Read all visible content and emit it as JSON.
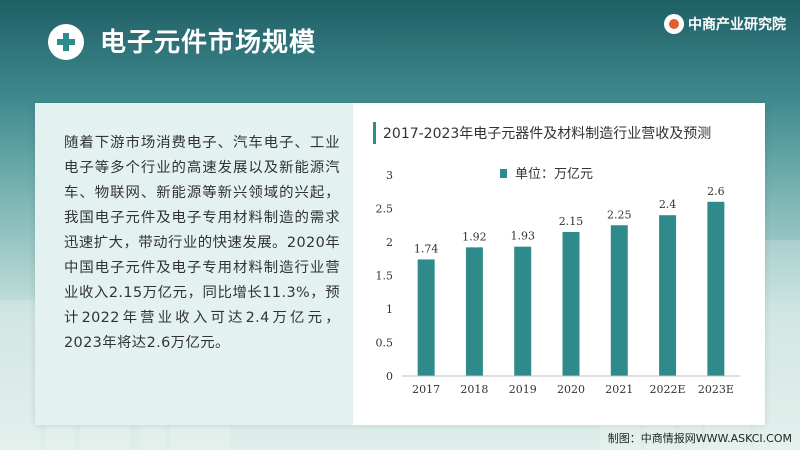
{
  "page": {
    "title": "电子元件市场规模",
    "logo_text": "中商产业研究院",
    "credit": "制图：中商情报网WWW.ASKCI.COM"
  },
  "text": {
    "paragraph": "随着下游市场消费电子、汽车电子、工业电子等多个行业的高速发展以及新能源汽车、物联网、新能源等新兴领域的兴起，我国电子元件及电子专用材料制造的需求迅速扩大，带动行业的快速发展。2020年中国电子元件及电子专用材料制造行业营业收入2.15万亿元，同比增长11.3%，预计2022年营业收入可达2.4万亿元，2023年将达2.6万亿元。"
  },
  "colors": {
    "bar": "#2f8b8b",
    "accent": "#2f8b8b",
    "text_panel": "#e3f2f1"
  },
  "chart_data": {
    "type": "bar",
    "title": "2017-2023年电子元器件及材料制造行业营收及预测",
    "categories": [
      "2017",
      "2018",
      "2019",
      "2020",
      "2021",
      "2022E",
      "2023E"
    ],
    "series": [
      {
        "name": "单位：万亿元",
        "values": [
          1.74,
          1.92,
          1.93,
          2.15,
          2.25,
          2.4,
          2.6
        ]
      }
    ],
    "data_labels": [
      "1.74",
      "1.92",
      "1.93",
      "2.15",
      "2.25",
      "2.4",
      "2.6"
    ],
    "yticks": [
      "0",
      "0.5",
      "1",
      "1.5",
      "2",
      "2.5",
      "3"
    ],
    "ylim": [
      0,
      3
    ],
    "grid": false,
    "legend_position": "top-center"
  }
}
